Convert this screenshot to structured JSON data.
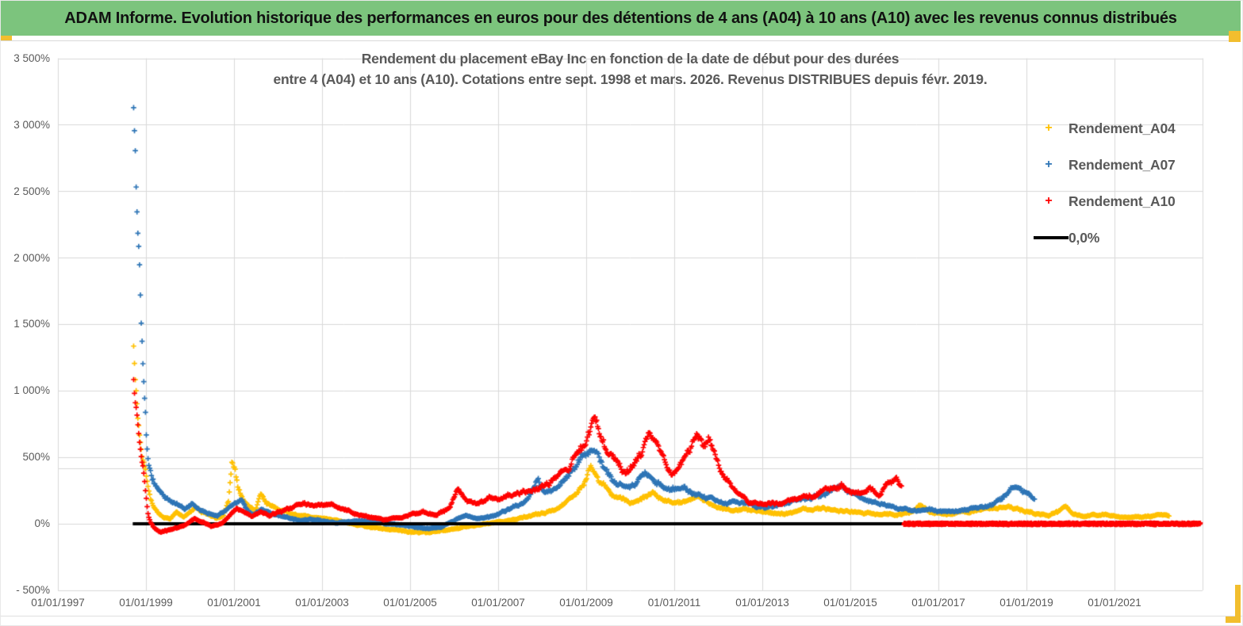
{
  "header": {
    "title": "ADAM Informe. Evolution historique des performances en euros pour des détentions de 4 ans (A04) à 10 ans (A10) avec les revenus connus distribués"
  },
  "chart": {
    "title_line1": "Rendement du placement eBay Inc en fonction de la date de début pour des durées",
    "title_line2": "entre 4 (A04) et 10 ans (A10). Cotations entre sept. 1998 et mars. 2026. Revenus DISTRIBUES depuis févr. 2019.",
    "y_ticks": [
      "3 500%",
      "3 000%",
      "2 500%",
      "2 000%",
      "1 500%",
      "1 000%",
      "500%",
      "0%",
      "- 500%"
    ],
    "x_ticks": [
      "01/01/1997",
      "01/01/1999",
      "01/01/2001",
      "01/01/2003",
      "01/01/2005",
      "01/01/2007",
      "01/01/2009",
      "01/01/2011",
      "01/01/2013",
      "01/01/2015",
      "01/01/2017",
      "01/01/2019",
      "01/01/2021"
    ],
    "legend": [
      {
        "label": "Rendement_A04",
        "color": "#FFC000",
        "marker": "plus"
      },
      {
        "label": "Rendement_A07",
        "color": "#2E75B6",
        "marker": "plus"
      },
      {
        "label": "Rendement_A10",
        "color": "#FF0000",
        "marker": "plus"
      },
      {
        "label": "0,0%",
        "color": "#000000",
        "marker": "line"
      }
    ]
  },
  "chart_data": {
    "type": "scatter",
    "marker": "plus",
    "title": "Rendement du placement eBay Inc en fonction de la date de début pour des durées entre 4 (A04) et 10 ans (A10). Cotations entre sept. 1998 et mars. 2026. Revenus DISTRIBUES depuis févr. 2019.",
    "x_axis": {
      "label": "date de début",
      "start_year": 1997,
      "end_year": 2023,
      "tick_step_years": 2
    },
    "y_axis": {
      "unit": "%",
      "min": -500,
      "max": 3500,
      "tick_step": 500,
      "grid": true,
      "extra_gridline_pct": 415
    },
    "zero_line": {
      "label": "0,0%",
      "color": "#000000",
      "value": 0,
      "x_start": 1998.7,
      "x_end": 2022.95
    },
    "series": [
      {
        "name": "Rendement_A04",
        "color": "#FFC000",
        "anchors": [
          [
            1998.72,
            1330
          ],
          [
            1998.74,
            1180
          ],
          [
            1998.77,
            1050
          ],
          [
            1998.8,
            900
          ],
          [
            1998.84,
            760
          ],
          [
            1998.88,
            620
          ],
          [
            1998.92,
            520
          ],
          [
            1998.96,
            450
          ],
          [
            1999.0,
            380
          ],
          [
            1999.05,
            280
          ],
          [
            1999.1,
            190
          ],
          [
            1999.18,
            120
          ],
          [
            1999.27,
            80
          ],
          [
            1999.4,
            40
          ],
          [
            1999.55,
            35
          ],
          [
            1999.7,
            90
          ],
          [
            1999.85,
            55
          ],
          [
            2000.0,
            85
          ],
          [
            2000.15,
            125
          ],
          [
            2000.3,
            90
          ],
          [
            2000.45,
            60
          ],
          [
            2000.6,
            35
          ],
          [
            2000.75,
            55
          ],
          [
            2000.88,
            180
          ],
          [
            2000.95,
            460
          ],
          [
            2001.02,
            420
          ],
          [
            2001.1,
            290
          ],
          [
            2001.22,
            180
          ],
          [
            2001.35,
            130
          ],
          [
            2001.5,
            105
          ],
          [
            2001.6,
            250
          ],
          [
            2001.7,
            180
          ],
          [
            2001.85,
            140
          ],
          [
            2002.0,
            115
          ],
          [
            2002.2,
            90
          ],
          [
            2002.45,
            65
          ],
          [
            2002.7,
            55
          ],
          [
            2003.0,
            45
          ],
          [
            2003.3,
            25
          ],
          [
            2003.6,
            5
          ],
          [
            2003.9,
            -15
          ],
          [
            2004.2,
            -30
          ],
          [
            2004.6,
            -45
          ],
          [
            2005.0,
            -60
          ],
          [
            2005.4,
            -65
          ],
          [
            2005.8,
            -45
          ],
          [
            2006.2,
            -25
          ],
          [
            2006.6,
            -5
          ],
          [
            2007.0,
            15
          ],
          [
            2007.4,
            35
          ],
          [
            2007.8,
            65
          ],
          [
            2008.1,
            85
          ],
          [
            2008.4,
            120
          ],
          [
            2008.7,
            200
          ],
          [
            2008.95,
            300
          ],
          [
            2009.1,
            430
          ],
          [
            2009.2,
            390
          ],
          [
            2009.35,
            300
          ],
          [
            2009.55,
            230
          ],
          [
            2009.75,
            190
          ],
          [
            2010.0,
            155
          ],
          [
            2010.25,
            185
          ],
          [
            2010.5,
            235
          ],
          [
            2010.75,
            175
          ],
          [
            2011.0,
            150
          ],
          [
            2011.25,
            175
          ],
          [
            2011.55,
            205
          ],
          [
            2011.8,
            160
          ],
          [
            2012.0,
            120
          ],
          [
            2012.3,
            100
          ],
          [
            2012.6,
            115
          ],
          [
            2012.9,
            95
          ],
          [
            2013.2,
            85
          ],
          [
            2013.6,
            80
          ],
          [
            2014.0,
            105
          ],
          [
            2014.4,
            115
          ],
          [
            2014.8,
            95
          ],
          [
            2015.2,
            85
          ],
          [
            2015.6,
            75
          ],
          [
            2016.0,
            70
          ],
          [
            2016.4,
            95
          ],
          [
            2016.6,
            150
          ],
          [
            2016.8,
            95
          ],
          [
            2017.1,
            75
          ],
          [
            2017.4,
            85
          ],
          [
            2017.8,
            100
          ],
          [
            2018.2,
            115
          ],
          [
            2018.6,
            120
          ],
          [
            2018.9,
            105
          ],
          [
            2019.2,
            80
          ],
          [
            2019.5,
            65
          ],
          [
            2019.75,
            95
          ],
          [
            2019.9,
            130
          ],
          [
            2020.05,
            80
          ],
          [
            2020.3,
            55
          ],
          [
            2020.6,
            70
          ],
          [
            2020.9,
            60
          ],
          [
            2021.2,
            50
          ],
          [
            2021.5,
            45
          ],
          [
            2021.8,
            55
          ],
          [
            2022.05,
            75
          ],
          [
            2022.25,
            60
          ]
        ]
      },
      {
        "name": "Rendement_A07",
        "color": "#2E75B6",
        "anchors": [
          [
            1998.72,
            3140
          ],
          [
            1998.73,
            3020
          ],
          [
            1998.75,
            2890
          ],
          [
            1998.77,
            2690
          ],
          [
            1998.8,
            2400
          ],
          [
            1998.83,
            2120
          ],
          [
            1998.86,
            1970
          ],
          [
            1998.9,
            1530
          ],
          [
            1998.94,
            1220
          ],
          [
            1998.98,
            1000
          ],
          [
            1999.02,
            700
          ],
          [
            1999.06,
            520
          ],
          [
            1999.12,
            420
          ],
          [
            1999.2,
            330
          ],
          [
            1999.3,
            260
          ],
          [
            1999.45,
            200
          ],
          [
            1999.6,
            160
          ],
          [
            1999.75,
            135
          ],
          [
            1999.9,
            115
          ],
          [
            2000.05,
            145
          ],
          [
            2000.2,
            105
          ],
          [
            2000.4,
            75
          ],
          [
            2000.6,
            60
          ],
          [
            2000.8,
            90
          ],
          [
            2001.0,
            150
          ],
          [
            2001.15,
            170
          ],
          [
            2001.3,
            105
          ],
          [
            2001.45,
            65
          ],
          [
            2001.6,
            115
          ],
          [
            2001.8,
            85
          ],
          [
            2002.0,
            60
          ],
          [
            2002.25,
            40
          ],
          [
            2002.5,
            20
          ],
          [
            2002.75,
            30
          ],
          [
            2003.0,
            20
          ],
          [
            2003.3,
            10
          ],
          [
            2003.7,
            15
          ],
          [
            2004.1,
            20
          ],
          [
            2004.5,
            0
          ],
          [
            2004.9,
            -15
          ],
          [
            2005.3,
            -30
          ],
          [
            2005.7,
            -20
          ],
          [
            2006.0,
            25
          ],
          [
            2006.25,
            60
          ],
          [
            2006.5,
            40
          ],
          [
            2006.8,
            55
          ],
          [
            2007.1,
            90
          ],
          [
            2007.4,
            135
          ],
          [
            2007.7,
            190
          ],
          [
            2007.9,
            340
          ],
          [
            2008.05,
            230
          ],
          [
            2008.25,
            260
          ],
          [
            2008.5,
            310
          ],
          [
            2008.75,
            430
          ],
          [
            2009.0,
            520
          ],
          [
            2009.15,
            575
          ],
          [
            2009.3,
            480
          ],
          [
            2009.5,
            385
          ],
          [
            2009.7,
            305
          ],
          [
            2009.9,
            265
          ],
          [
            2010.1,
            290
          ],
          [
            2010.35,
            380
          ],
          [
            2010.55,
            330
          ],
          [
            2010.8,
            265
          ],
          [
            2011.0,
            275
          ],
          [
            2011.25,
            250
          ],
          [
            2011.55,
            225
          ],
          [
            2011.85,
            185
          ],
          [
            2012.1,
            155
          ],
          [
            2012.4,
            170
          ],
          [
            2012.7,
            145
          ],
          [
            2013.0,
            125
          ],
          [
            2013.4,
            140
          ],
          [
            2013.8,
            170
          ],
          [
            2014.1,
            200
          ],
          [
            2014.45,
            235
          ],
          [
            2014.75,
            290
          ],
          [
            2015.0,
            245
          ],
          [
            2015.3,
            185
          ],
          [
            2015.6,
            145
          ],
          [
            2015.9,
            130
          ],
          [
            2016.2,
            110
          ],
          [
            2016.5,
            90
          ],
          [
            2016.8,
            105
          ],
          [
            2017.1,
            90
          ],
          [
            2017.4,
            100
          ],
          [
            2017.7,
            115
          ],
          [
            2018.0,
            130
          ],
          [
            2018.3,
            155
          ],
          [
            2018.55,
            225
          ],
          [
            2018.75,
            280
          ],
          [
            2018.95,
            235
          ],
          [
            2019.1,
            200
          ],
          [
            2019.2,
            180
          ]
        ]
      },
      {
        "name": "Rendement_A10",
        "color": "#FF0000",
        "anchors": [
          [
            1998.72,
            1070
          ],
          [
            1998.75,
            960
          ],
          [
            1998.79,
            840
          ],
          [
            1998.83,
            720
          ],
          [
            1998.87,
            590
          ],
          [
            1998.91,
            470
          ],
          [
            1998.95,
            380
          ],
          [
            1999.0,
            210
          ],
          [
            1999.05,
            70
          ],
          [
            1999.1,
            10
          ],
          [
            1999.2,
            -40
          ],
          [
            1999.35,
            -70
          ],
          [
            1999.5,
            -55
          ],
          [
            1999.7,
            -35
          ],
          [
            1999.9,
            -5
          ],
          [
            2000.1,
            40
          ],
          [
            2000.3,
            15
          ],
          [
            2000.5,
            -20
          ],
          [
            2000.7,
            0
          ],
          [
            2000.9,
            60
          ],
          [
            2001.05,
            120
          ],
          [
            2001.2,
            90
          ],
          [
            2001.4,
            55
          ],
          [
            2001.6,
            90
          ],
          [
            2001.8,
            60
          ],
          [
            2002.0,
            85
          ],
          [
            2002.3,
            120
          ],
          [
            2002.6,
            155
          ],
          [
            2002.9,
            130
          ],
          [
            2003.2,
            145
          ],
          [
            2003.5,
            105
          ],
          [
            2003.8,
            80
          ],
          [
            2004.1,
            50
          ],
          [
            2004.4,
            30
          ],
          [
            2004.7,
            45
          ],
          [
            2005.0,
            65
          ],
          [
            2005.3,
            95
          ],
          [
            2005.6,
            65
          ],
          [
            2005.9,
            125
          ],
          [
            2006.08,
            270
          ],
          [
            2006.25,
            185
          ],
          [
            2006.5,
            150
          ],
          [
            2006.8,
            205
          ],
          [
            2007.1,
            180
          ],
          [
            2007.4,
            225
          ],
          [
            2007.7,
            255
          ],
          [
            2008.0,
            285
          ],
          [
            2008.3,
            350
          ],
          [
            2008.6,
            430
          ],
          [
            2008.9,
            560
          ],
          [
            2009.1,
            710
          ],
          [
            2009.2,
            790
          ],
          [
            2009.3,
            660
          ],
          [
            2009.45,
            545
          ],
          [
            2009.65,
            470
          ],
          [
            2009.85,
            400
          ],
          [
            2010.05,
            450
          ],
          [
            2010.25,
            545
          ],
          [
            2010.45,
            690
          ],
          [
            2010.6,
            590
          ],
          [
            2010.8,
            445
          ],
          [
            2010.95,
            375
          ],
          [
            2011.15,
            450
          ],
          [
            2011.35,
            530
          ],
          [
            2011.5,
            660
          ],
          [
            2011.65,
            590
          ],
          [
            2011.78,
            645
          ],
          [
            2011.95,
            490
          ],
          [
            2012.1,
            360
          ],
          [
            2012.3,
            285
          ],
          [
            2012.5,
            210
          ],
          [
            2012.7,
            165
          ],
          [
            2012.9,
            145
          ],
          [
            2013.15,
            160
          ],
          [
            2013.45,
            150
          ],
          [
            2013.75,
            175
          ],
          [
            2014.05,
            205
          ],
          [
            2014.35,
            235
          ],
          [
            2014.6,
            265
          ],
          [
            2014.8,
            300
          ],
          [
            2015.0,
            255
          ],
          [
            2015.2,
            225
          ],
          [
            2015.45,
            280
          ],
          [
            2015.65,
            235
          ],
          [
            2015.85,
            300
          ],
          [
            2016.05,
            330
          ],
          [
            2016.18,
            260
          ]
        ],
        "flat_zero_tail": {
          "from": 2016.22,
          "to": 2022.95,
          "value": 0
        }
      }
    ]
  }
}
